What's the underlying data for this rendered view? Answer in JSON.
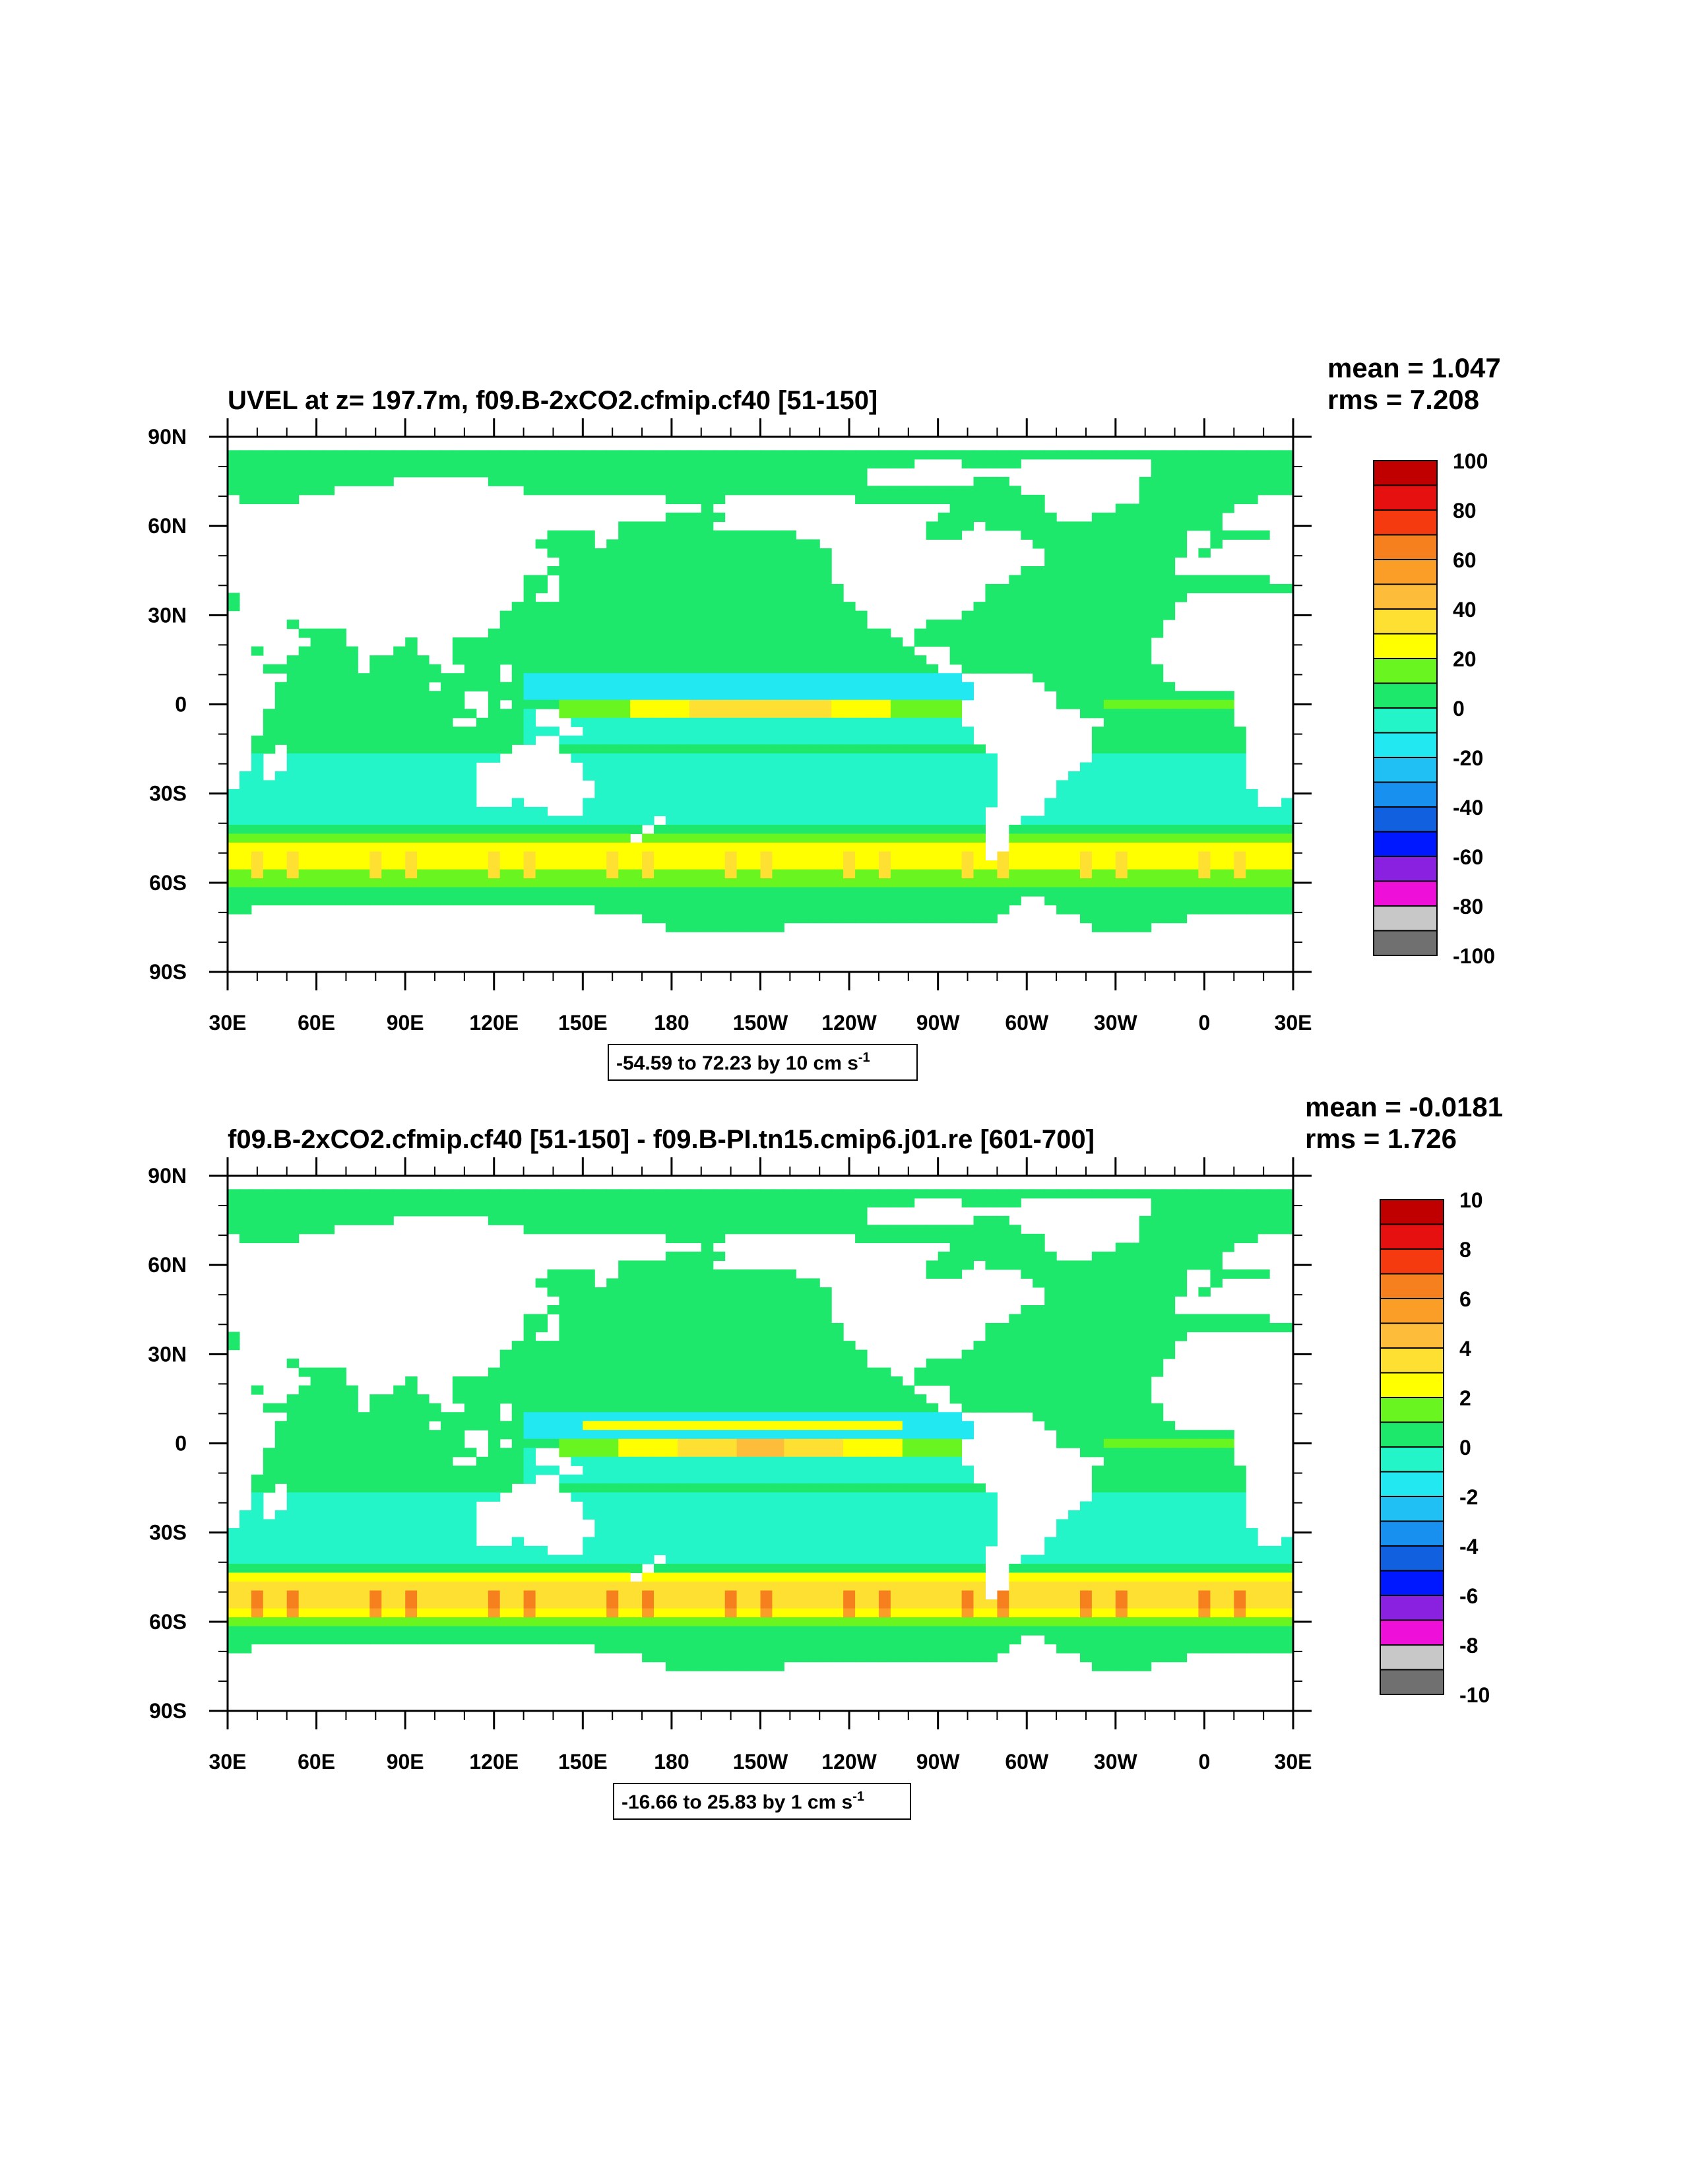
{
  "chart_data": [
    {
      "type": "heatmap",
      "title": "UVEL at z= 197.7m, f09.B-2xCO2.cfmip.cf40 [51-150]",
      "stats": {
        "mean": "mean = 1.047",
        "rms": "rms = 7.208"
      },
      "note_text": "-54.59 to 72.23 by 10 cm s",
      "note_sup": "-1",
      "x_ticks": [
        "30E",
        "60E",
        "90E",
        "120E",
        "150E",
        "180",
        "150W",
        "120W",
        "90W",
        "60W",
        "30W",
        "0",
        "30E"
      ],
      "x_range": [
        30,
        390
      ],
      "y_ticks": [
        "90N",
        "60N",
        "30N",
        "0",
        "30S",
        "60S",
        "90S"
      ],
      "y_range": [
        90,
        -90
      ],
      "colorbar": {
        "labels": [
          "100",
          "80",
          "60",
          "40",
          "20",
          "0",
          "-20",
          "-40",
          "-60",
          "-80",
          "-100"
        ],
        "colors": [
          "#c00000",
          "#e61010",
          "#f53a10",
          "#f7801e",
          "#fb9e28",
          "#fdbc3a",
          "#fde032",
          "#ffff00",
          "#68f520",
          "#1ee86b",
          "#24f5c8",
          "#22e8f2",
          "#20c0f5",
          "#1890f0",
          "#1060e0",
          "#0018ff",
          "#8a20e0",
          "#ee10d8",
          "#c8c8c8",
          "#707070"
        ]
      },
      "field": {
        "base": 0,
        "levels": 10,
        "jet_max": 72.23,
        "south_max": 45
      }
    },
    {
      "type": "heatmap",
      "title": "f09.B-2xCO2.cfmip.cf40 [51-150] - f09.B-PI.tn15.cmip6.j01.re [601-700]",
      "stats": {
        "mean": "mean = -0.0181",
        "rms": "rms = 1.726"
      },
      "note_text": "-16.66 to 25.83 by 1 cm s",
      "note_sup": "-1",
      "x_ticks": [
        "30E",
        "60E",
        "90E",
        "120E",
        "150E",
        "180",
        "150W",
        "120W",
        "90W",
        "60W",
        "30W",
        "0",
        "30E"
      ],
      "x_range": [
        30,
        390
      ],
      "y_ticks": [
        "90N",
        "60N",
        "30N",
        "0",
        "30S",
        "60S",
        "90S"
      ],
      "y_range": [
        90,
        -90
      ],
      "colorbar": {
        "labels": [
          "10",
          "8",
          "6",
          "4",
          "2",
          "0",
          "-2",
          "-4",
          "-6",
          "-8",
          "-10"
        ],
        "colors": [
          "#c00000",
          "#e61010",
          "#f53a10",
          "#f7801e",
          "#fb9e28",
          "#fdbc3a",
          "#fde032",
          "#ffff00",
          "#68f520",
          "#1ee86b",
          "#24f5c8",
          "#22e8f2",
          "#20c0f5",
          "#1890f0",
          "#1060e0",
          "#0018ff",
          "#8a20e0",
          "#ee10d8",
          "#c8c8c8",
          "#707070"
        ]
      },
      "field": {
        "base": 0,
        "levels": 1,
        "jet_max": 8,
        "south_max": 8
      }
    }
  ]
}
